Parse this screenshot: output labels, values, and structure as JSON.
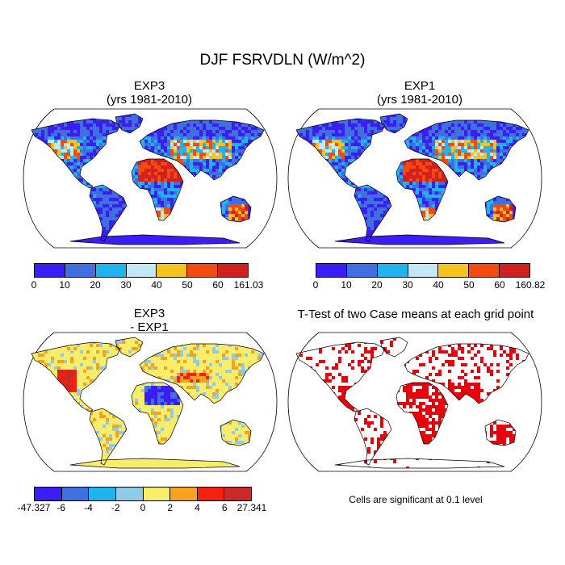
{
  "figure": {
    "title": "DJF FSRVDLN (W/m^2)"
  },
  "panels": [
    {
      "id": "exp3",
      "title_line1": "EXP3",
      "title_line2": "(yrs 1981-2010)",
      "colorbar": {
        "colors": [
          "#3b1ef5",
          "#3f6fe0",
          "#1eb4f0",
          "#c3e7f5",
          "#f5c21e",
          "#f54a0f",
          "#d12020"
        ],
        "labels": [
          "0",
          "10",
          "20",
          "30",
          "40",
          "50",
          "60",
          "161.03"
        ]
      }
    },
    {
      "id": "exp1",
      "title_line1": "EXP1",
      "title_line2": "(yrs 1981-2010)",
      "colorbar": {
        "colors": [
          "#3b1ef5",
          "#3f6fe0",
          "#1eb4f0",
          "#c3e7f5",
          "#f5c21e",
          "#f54a0f",
          "#d12020"
        ],
        "labels": [
          "0",
          "10",
          "20",
          "30",
          "40",
          "50",
          "60",
          "160.82"
        ]
      }
    },
    {
      "id": "diff",
      "title_line1": "EXP3",
      "title_line2": "- EXP1",
      "colorbar": {
        "colors": [
          "#3b1ef5",
          "#3f6fe0",
          "#1eb4f0",
          "#8fcbe8",
          "#f8ec6b",
          "#f5a31e",
          "#f5200f",
          "#c82a2a"
        ],
        "labels": [
          "-47.327",
          "-6",
          "-4",
          "-2",
          "0",
          "2",
          "4",
          "6",
          "27.341"
        ]
      }
    },
    {
      "id": "ttest",
      "title_line1": "T-Test of two Case means at each grid point",
      "note": "Cells are significant at 0.1 level",
      "colors": {
        "significant": "#e8000b"
      }
    }
  ]
}
